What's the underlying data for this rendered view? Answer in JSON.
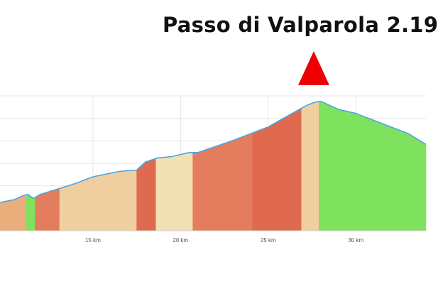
{
  "chart_data": {
    "type": "area",
    "title": "Passo di Valparola 2.19",
    "xlabel": "",
    "ylabel": "",
    "xlim": [
      9.7,
      34.0
    ],
    "x_ticks": [
      {
        "value": 15,
        "label": "15 km"
      },
      {
        "value": 20,
        "label": "20 km"
      },
      {
        "value": 25,
        "label": "25 km"
      },
      {
        "value": 30,
        "label": "30 km"
      }
    ],
    "grid": true,
    "legend": "none",
    "profile": [
      [
        9.7,
        0.21
      ],
      [
        10.5,
        0.23
      ],
      [
        11.0,
        0.26
      ],
      [
        11.3,
        0.27
      ],
      [
        11.6,
        0.24
      ],
      [
        12.0,
        0.27
      ],
      [
        13.0,
        0.31
      ],
      [
        14.0,
        0.35
      ],
      [
        15.0,
        0.4
      ],
      [
        16.5,
        0.44
      ],
      [
        17.5,
        0.45
      ],
      [
        18.0,
        0.51
      ],
      [
        18.7,
        0.54
      ],
      [
        19.5,
        0.55
      ],
      [
        20.5,
        0.58
      ],
      [
        21.0,
        0.58
      ],
      [
        23.0,
        0.67
      ],
      [
        25.0,
        0.77
      ],
      [
        26.5,
        0.88
      ],
      [
        27.2,
        0.93
      ],
      [
        27.6,
        0.95
      ],
      [
        28.0,
        0.96
      ],
      [
        28.5,
        0.93
      ],
      [
        29.0,
        0.9
      ],
      [
        30.0,
        0.87
      ],
      [
        31.0,
        0.82
      ],
      [
        33.0,
        0.72
      ],
      [
        34.0,
        0.64
      ]
    ],
    "segments": [
      {
        "from": 9.7,
        "to": 11.2,
        "color": "#e9ae7c"
      },
      {
        "from": 11.2,
        "to": 11.7,
        "color": "#7fe25f"
      },
      {
        "from": 11.7,
        "to": 13.1,
        "color": "#e47c5e"
      },
      {
        "from": 13.1,
        "to": 14.9,
        "color": "#efcfa0"
      },
      {
        "from": 14.9,
        "to": 17.5,
        "color": "#efcfa0"
      },
      {
        "from": 17.5,
        "to": 18.6,
        "color": "#e06a50"
      },
      {
        "from": 18.6,
        "to": 20.7,
        "color": "#f1e0b4"
      },
      {
        "from": 20.7,
        "to": 24.1,
        "color": "#e47c5e"
      },
      {
        "from": 24.1,
        "to": 26.9,
        "color": "#e06a50"
      },
      {
        "from": 26.9,
        "to": 27.9,
        "color": "#efcfa0"
      },
      {
        "from": 27.9,
        "to": 34.0,
        "color": "#7fe25f"
      }
    ],
    "summit": {
      "x": 27.6,
      "color": "#ee0000"
    },
    "line_color": "#4da6e0"
  }
}
